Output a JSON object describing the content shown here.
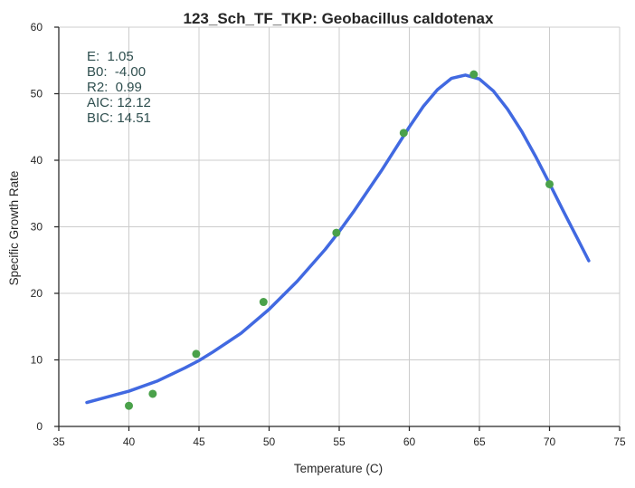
{
  "chart_data": {
    "type": "scatter",
    "title": "123_Sch_TF_TKP: Geobacillus caldotenax",
    "xlabel": "Temperature (C)",
    "ylabel": "Specific Growth Rate",
    "xlim": [
      35,
      75
    ],
    "ylim": [
      0,
      60
    ],
    "x_ticks": [
      "35",
      "40",
      "45",
      "50",
      "55",
      "60",
      "65",
      "70",
      "75"
    ],
    "y_ticks": [
      "0",
      "10",
      "20",
      "30",
      "40",
      "50",
      "60"
    ],
    "grid": true,
    "colors": {
      "points": "#4aa14a",
      "fit": "#4169e1",
      "stats_text": "#2f4f4f"
    },
    "stats": [
      "E:  1.05",
      "B0:  -4.00",
      "R2:  0.99",
      "AIC: 12.12",
      "BIC: 14.51"
    ],
    "series": [
      {
        "kind": "scatter",
        "x": [
          40.0,
          41.7,
          44.8,
          49.6,
          54.8,
          59.6,
          64.6,
          70.0
        ],
        "y": [
          3.1,
          4.9,
          10.9,
          18.7,
          29.1,
          44.1,
          52.9,
          36.4
        ]
      },
      {
        "kind": "line",
        "x": [
          37.0,
          40.0,
          42.0,
          44.0,
          45.0,
          46.0,
          48.0,
          50.0,
          52.0,
          54.0,
          55.0,
          56.0,
          58.0,
          60.0,
          61.0,
          62.0,
          63.0,
          64.0,
          65.0,
          66.0,
          67.0,
          68.0,
          69.0,
          70.0,
          71.0,
          72.0,
          72.8
        ],
        "y": [
          3.6,
          5.3,
          6.8,
          8.8,
          9.9,
          11.2,
          14.0,
          17.6,
          21.8,
          26.6,
          29.3,
          32.2,
          38.4,
          45.0,
          48.1,
          50.6,
          52.3,
          52.8,
          52.2,
          50.4,
          47.7,
          44.4,
          40.6,
          36.5,
          32.3,
          28.2,
          24.9
        ]
      }
    ]
  }
}
